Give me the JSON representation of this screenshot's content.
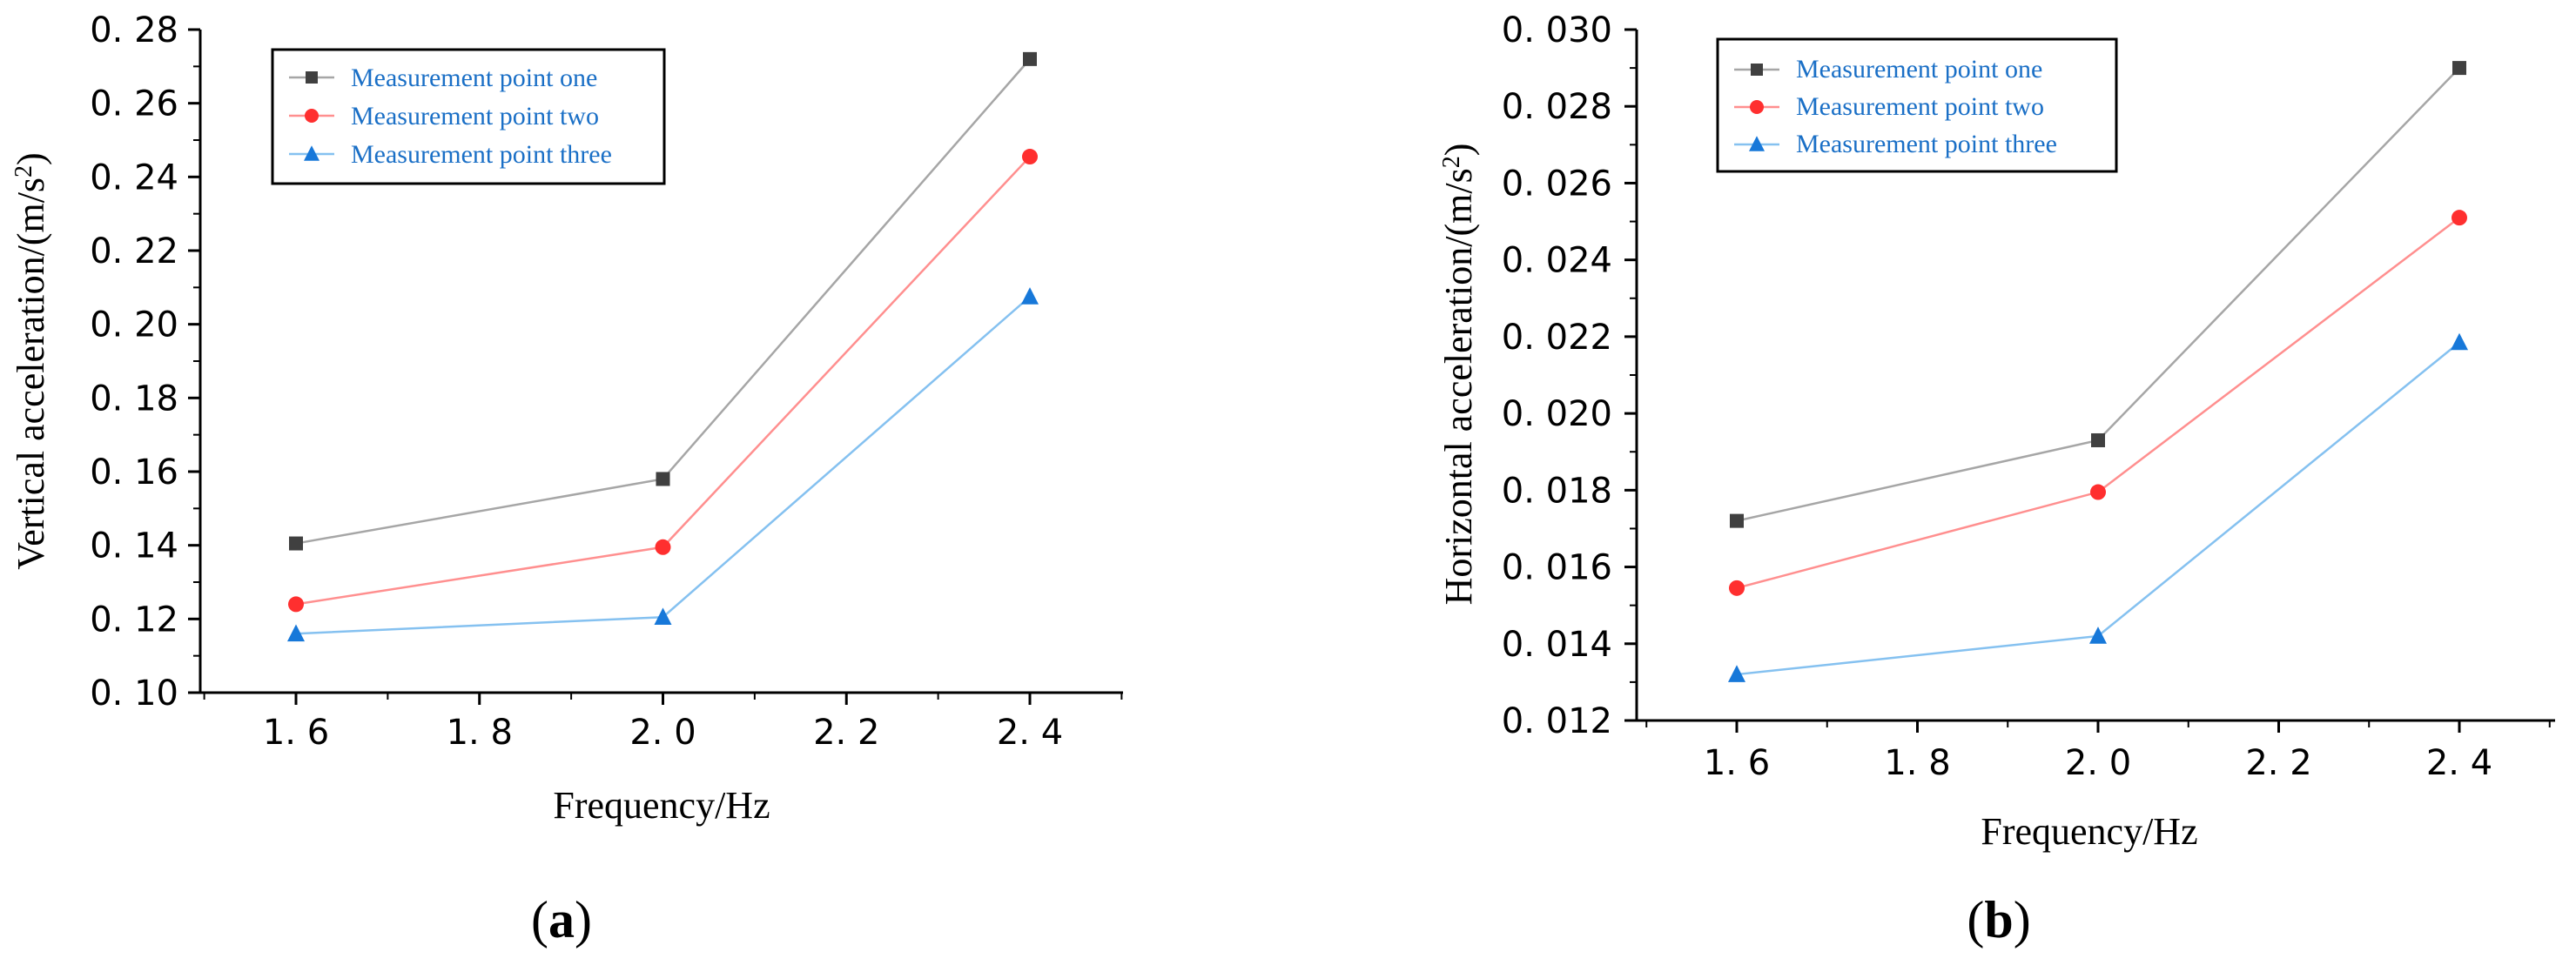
{
  "chart_data": [
    {
      "type": "line",
      "panel": "a",
      "panel_label": {
        "open": "(",
        "letter": "a",
        "close": ")"
      },
      "title": "",
      "xlabel": "Frequency/Hz",
      "ylabel_parts": {
        "main": "Vertical acceleration/(m/s",
        "sup": "2",
        "end": ")"
      },
      "x": [
        1.6,
        2.0,
        2.4
      ],
      "xlim": [
        1.5,
        2.5
      ],
      "x_ticks": [
        1.6,
        1.8,
        2.0,
        2.2,
        2.4
      ],
      "x_tick_labels": [
        "1. 6",
        "1. 8",
        "2. 0",
        "2. 2",
        "2. 4"
      ],
      "ylim": [
        0.1,
        0.28
      ],
      "y_ticks": [
        0.1,
        0.12,
        0.14,
        0.16,
        0.18,
        0.2,
        0.22,
        0.24,
        0.26,
        0.28
      ],
      "y_tick_labels": [
        "0. 10",
        "0. 12",
        "0. 14",
        "0. 16",
        "0. 18",
        "0. 20",
        "0. 22",
        "0. 24",
        "0. 26",
        "0. 28"
      ],
      "grid": false,
      "legend_position": "top-left",
      "series": [
        {
          "name": "Measurement point one",
          "values": [
            0.1405,
            0.158,
            0.272
          ],
          "line_color": "#a6a6a6",
          "marker_color": "#404040",
          "marker": "square"
        },
        {
          "name": "Measurement point two",
          "values": [
            0.124,
            0.1395,
            0.2455
          ],
          "line_color": "#ff8f8f",
          "marker_color": "#ff2f2f",
          "marker": "circle"
        },
        {
          "name": "Measurement point three",
          "values": [
            0.116,
            0.1205,
            0.2075
          ],
          "line_color": "#85c1f0",
          "marker_color": "#1778d9",
          "marker": "triangle"
        }
      ]
    },
    {
      "type": "line",
      "panel": "b",
      "panel_label": {
        "open": "(",
        "letter": "b",
        "close": ")"
      },
      "title": "",
      "xlabel": "Frequency/Hz",
      "ylabel_parts": {
        "main": "Horizontal acceleration/(m/s",
        "sup": "2",
        "end": ")"
      },
      "x": [
        1.6,
        2.0,
        2.4
      ],
      "xlim": [
        1.5,
        2.5
      ],
      "x_ticks": [
        1.6,
        1.8,
        2.0,
        2.2,
        2.4
      ],
      "x_tick_labels": [
        "1. 6",
        "1. 8",
        "2. 0",
        "2. 2",
        "2. 4"
      ],
      "ylim": [
        0.012,
        0.03
      ],
      "y_ticks": [
        0.012,
        0.014,
        0.016,
        0.018,
        0.02,
        0.022,
        0.024,
        0.026,
        0.028,
        0.03
      ],
      "y_tick_labels": [
        "0. 012",
        "0. 014",
        "0. 016",
        "0. 018",
        "0. 020",
        "0. 022",
        "0. 024",
        "0. 026",
        "0. 028",
        "0. 030"
      ],
      "grid": false,
      "legend_position": "top-left",
      "series": [
        {
          "name": "Measurement point one",
          "values": [
            0.0172,
            0.0193,
            0.029
          ],
          "line_color": "#a6a6a6",
          "marker_color": "#404040",
          "marker": "square"
        },
        {
          "name": "Measurement point two",
          "values": [
            0.01545,
            0.01795,
            0.0251
          ],
          "line_color": "#ff8f8f",
          "marker_color": "#ff2f2f",
          "marker": "circle"
        },
        {
          "name": "Measurement point three",
          "values": [
            0.0132,
            0.0142,
            0.02185
          ],
          "line_color": "#85c1f0",
          "marker_color": "#1778d9",
          "marker": "triangle"
        }
      ]
    }
  ],
  "colors": {
    "legend_text": "#1a6fc6",
    "axis": "#000000"
  }
}
